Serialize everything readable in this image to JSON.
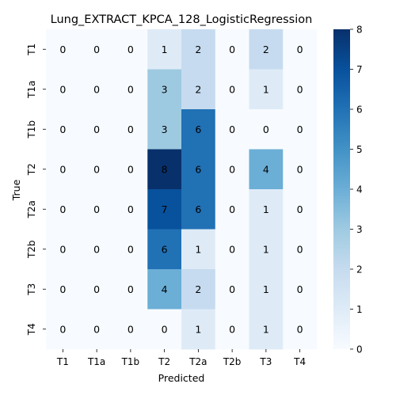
{
  "chart_data": {
    "type": "heatmap",
    "title": "Lung_EXTRACT_KPCA_128_LogisticRegression",
    "xlabel": "Predicted",
    "ylabel": "True",
    "x_categories": [
      "T1",
      "T1a",
      "T1b",
      "T2",
      "T2a",
      "T2b",
      "T3",
      "T4"
    ],
    "y_categories": [
      "T1",
      "T1a",
      "T1b",
      "T2",
      "T2a",
      "T2b",
      "T3",
      "T4"
    ],
    "values": [
      [
        0,
        0,
        0,
        1,
        2,
        0,
        2,
        0
      ],
      [
        0,
        0,
        0,
        3,
        2,
        0,
        1,
        0
      ],
      [
        0,
        0,
        0,
        3,
        6,
        0,
        0,
        0
      ],
      [
        0,
        0,
        0,
        8,
        6,
        0,
        4,
        0
      ],
      [
        0,
        0,
        0,
        7,
        6,
        0,
        1,
        0
      ],
      [
        0,
        0,
        0,
        6,
        1,
        0,
        1,
        0
      ],
      [
        0,
        0,
        0,
        4,
        2,
        0,
        1,
        0
      ],
      [
        0,
        0,
        0,
        0,
        1,
        0,
        1,
        0
      ]
    ],
    "colorbar": {
      "min": 0,
      "max": 8,
      "ticks": [
        "0",
        "1",
        "2",
        "3",
        "4",
        "5",
        "6",
        "7",
        "8"
      ],
      "colormap": "Blues"
    },
    "grid": false
  }
}
